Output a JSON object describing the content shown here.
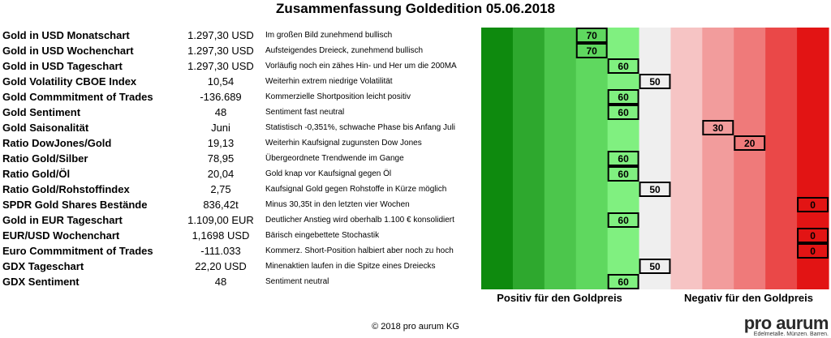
{
  "chart_data": {
    "type": "table",
    "title": "Zusammenfassung Goldedition 05.06.2018",
    "scale": {
      "positive_label": "Positiv für den Goldpreis",
      "negative_label": "Negativ für den Goldpreis",
      "columns": [
        100,
        90,
        80,
        70,
        60,
        50,
        40,
        30,
        20,
        10,
        0
      ],
      "colors": [
        "#0e8a0e",
        "#2ea82e",
        "#4cc64c",
        "#5fd85f",
        "#80f080",
        "#efefef",
        "#f6c4c4",
        "#f29c9c",
        "#ef7a7a",
        "#ea4848",
        "#e21414"
      ]
    },
    "rows": [
      {
        "label": "Gold in USD Monatschart",
        "value": "1.297,30 USD",
        "comment": "Im großen Bild zunehmend bullisch",
        "score": 70
      },
      {
        "label": "Gold in USD Wochenchart",
        "value": "1.297,30 USD",
        "comment": "Aufsteigendes Dreieck, zunehmend bullisch",
        "score": 70
      },
      {
        "label": "Gold in USD Tageschart",
        "value": "1.297,30 USD",
        "comment": "Vorläufig noch ein zähes Hin- und Her um die 200MA",
        "score": 60
      },
      {
        "label": "Gold Volatility CBOE Index",
        "value": "10,54",
        "comment": "Weiterhin extrem niedrige Volatilität",
        "score": 50
      },
      {
        "label": "Gold Commmitment of Trades",
        "value": "-136.689",
        "comment": "Kommerzielle Shortposition leicht positiv",
        "score": 60
      },
      {
        "label": "Gold Sentiment",
        "value": "48",
        "comment": "Sentiment fast neutral",
        "score": 60
      },
      {
        "label": "Gold Saisonalität",
        "value": "Juni",
        "comment": "Statistisch -0,351%, schwache Phase bis Anfang Juli",
        "score": 30
      },
      {
        "label": "Ratio DowJones/Gold",
        "value": "19,13",
        "comment": "Weiterhin Kaufsignal zugunsten Dow Jones",
        "score": 20
      },
      {
        "label": "Ratio Gold/Silber",
        "value": "78,95",
        "comment": "Übergeordnete Trendwende im Gange",
        "score": 60
      },
      {
        "label": "Ratio Gold/Öl",
        "value": "20,04",
        "comment": "Gold knap vor Kaufsignal gegen Öl",
        "score": 60
      },
      {
        "label": "Ratio Gold/Rohstoffindex",
        "value": "2,75",
        "comment": "Kaufsignal Gold gegen Rohstoffe in Kürze möglich",
        "score": 50
      },
      {
        "label": "SPDR Gold Shares Bestände",
        "value": "836,42t",
        "comment": "Minus 30,35t in den letzten vier Wochen",
        "score": 0
      },
      {
        "label": "Gold in EUR Tageschart",
        "value": "1.109,00 EUR",
        "comment": "Deutlicher Anstieg wird oberhalb 1.100 € konsolidiert",
        "score": 60
      },
      {
        "label": "EUR/USD Wochenchart",
        "value": "1,1698 USD",
        "comment": "Bärisch eingebettete Stochastik",
        "score": 0
      },
      {
        "label": "Euro Commmitment of Trades",
        "value": "-111.033",
        "comment": "Kommerz. Short-Position halbiert aber noch zu hoch",
        "score": 0
      },
      {
        "label": "GDX Tageschart",
        "value": "22,20 USD",
        "comment": "Minenaktien laufen in die Spitze eines Dreiecks",
        "score": 50
      },
      {
        "label": "GDX Sentiment",
        "value": "48",
        "comment": "Sentiment neutral",
        "score": 60
      }
    ]
  },
  "footer": {
    "copyright": "© 2018 pro aurum KG",
    "logo_name": "pro aurum",
    "logo_tagline": "Edelmetalle. Münzen. Barren."
  }
}
